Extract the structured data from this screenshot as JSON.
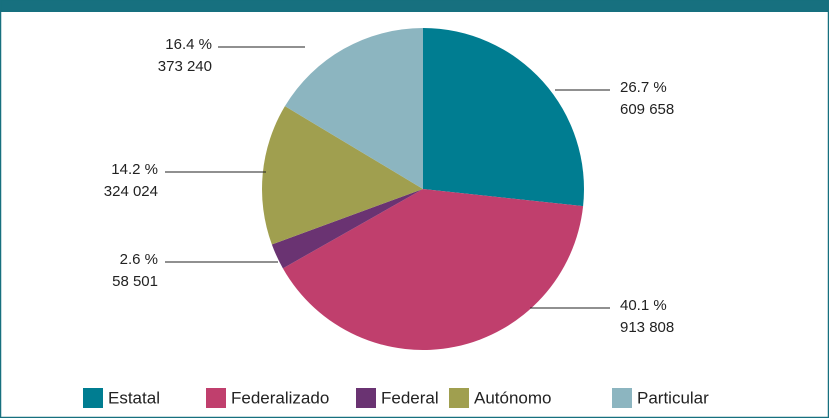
{
  "chart_data": {
    "type": "pie",
    "categories": [
      "Estatal",
      "Federalizado",
      "Federal",
      "Autónomo",
      "Particular"
    ],
    "values": [
      26.7,
      40.1,
      2.6,
      14.2,
      16.4
    ],
    "value_labels": [
      "26.7 %",
      "40.1 %",
      "2.6 %",
      "14.2 %",
      "16.4 %"
    ],
    "counts": [
      609658,
      913808,
      58501,
      324024,
      373240
    ],
    "count_labels": [
      "609 658",
      "913 808",
      "58 501",
      "324 024",
      "373 240"
    ],
    "colors": [
      "#007d91",
      "#c03f6d",
      "#6a3372",
      "#a09f4f",
      "#8cb5c0"
    ],
    "legend": "bottom"
  }
}
